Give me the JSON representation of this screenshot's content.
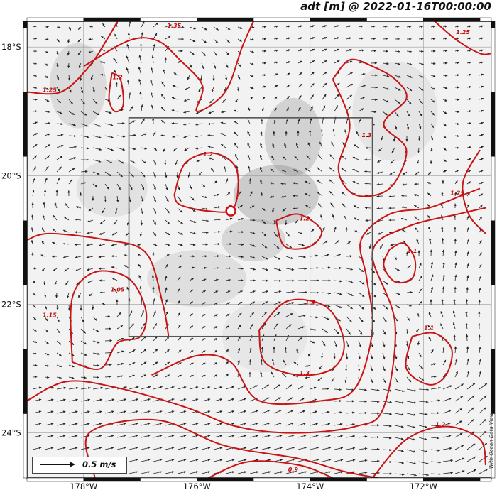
{
  "title": "adt [m] @ 2022-01-16T00:00:00",
  "legend": {
    "speed_label": "0.5 m/s"
  },
  "credit": "With Ocean Data View",
  "map": {
    "lon_range": [
      -179,
      -170.8
    ],
    "lat_range": [
      -24.7,
      -17.6
    ],
    "lon_ticks": [
      {
        "value": -178,
        "label": "178°W"
      },
      {
        "value": -176,
        "label": "176°W"
      },
      {
        "value": -174,
        "label": "174°W"
      },
      {
        "value": -172,
        "label": "172°W"
      }
    ],
    "lat_ticks": [
      {
        "value": -18,
        "label": "18°S"
      },
      {
        "value": -20,
        "label": "20°S"
      },
      {
        "value": -22,
        "label": "22°S"
      },
      {
        "value": -24,
        "label": "24°S"
      }
    ],
    "region_box": {
      "lon": [
        -177.2,
        -172.9
      ],
      "lat": [
        -19.1,
        -22.5
      ]
    },
    "station": {
      "lon": -175.4,
      "lat": -20.55
    },
    "colors": {
      "contour": "#c81414",
      "land_shade": "#b8b8b8",
      "arrow": "#222222",
      "frame": "#111111"
    }
  },
  "contours": [
    {
      "label": "1.2",
      "lon": -175.8,
      "lat": -19.7,
      "points": [
        [
          -176.4,
          -20.3
        ],
        [
          -176.2,
          -19.8
        ],
        [
          -175.7,
          -19.65
        ],
        [
          -175.3,
          -19.9
        ],
        [
          -175.35,
          -20.5
        ],
        [
          -175.8,
          -20.55
        ],
        [
          -176.3,
          -20.45
        ]
      ]
    },
    {
      "label": "1.2",
      "lon": -177.4,
      "lat": -18.5,
      "points": [
        [
          -177.5,
          -18.4
        ],
        [
          -177.35,
          -18.5
        ],
        [
          -177.3,
          -18.9
        ],
        [
          -177.45,
          -19.0
        ],
        [
          -177.55,
          -18.8
        ]
      ]
    },
    {
      "label": "1.2",
      "lon": -174.1,
      "lat": -20.7,
      "points": [
        [
          -174.6,
          -20.7
        ],
        [
          -174.2,
          -20.6
        ],
        [
          -173.8,
          -20.85
        ],
        [
          -174.0,
          -21.1
        ],
        [
          -174.45,
          -21.1
        ]
      ]
    },
    {
      "label": "1.3",
      "lon": -174.0,
      "lat": -22.0,
      "points": [
        [
          -174.9,
          -22.4
        ],
        [
          -174.4,
          -21.95
        ],
        [
          -173.7,
          -22.05
        ],
        [
          -173.4,
          -22.6
        ],
        [
          -173.6,
          -23.0
        ],
        [
          -174.2,
          -23.1
        ],
        [
          -174.8,
          -22.9
        ]
      ]
    },
    {
      "label": "1.3",
      "lon": -173.0,
      "lat": -19.4,
      "points": [
        [
          -173.6,
          -18.5
        ],
        [
          -173.3,
          -18.2
        ],
        [
          -172.9,
          -18.3
        ],
        [
          -172.5,
          -18.5
        ],
        [
          -172.3,
          -18.8
        ],
        [
          -172.7,
          -19.2
        ],
        [
          -172.3,
          -19.6
        ],
        [
          -172.6,
          -20.2
        ],
        [
          -173.2,
          -20.3
        ],
        [
          -173.5,
          -19.9
        ],
        [
          -173.3,
          -19.2
        ]
      ]
    },
    {
      "label": "1.1",
      "lon": -172.2,
      "lat": -21.2,
      "points": [
        [
          -172.6,
          -21.15
        ],
        [
          -172.35,
          -21.05
        ],
        [
          -172.15,
          -21.3
        ],
        [
          -172.2,
          -21.6
        ],
        [
          -172.5,
          -21.65
        ],
        [
          -172.7,
          -21.4
        ]
      ]
    },
    {
      "label": "1.1",
      "lon": -171.9,
      "lat": -22.4,
      "points": [
        [
          -172.2,
          -22.5
        ],
        [
          -171.8,
          -22.45
        ],
        [
          -171.5,
          -22.7
        ],
        [
          -171.6,
          -23.1
        ],
        [
          -171.9,
          -23.25
        ],
        [
          -172.3,
          -23.0
        ]
      ]
    },
    {
      "label": "1.05",
      "lon": -177.4,
      "lat": -21.8,
      "points": [
        [
          -178.2,
          -22.9
        ],
        [
          -178.2,
          -21.9
        ],
        [
          -177.8,
          -21.5
        ],
        [
          -177.2,
          -21.6
        ],
        [
          -176.9,
          -22.1
        ],
        [
          -177.0,
          -22.5
        ],
        [
          -177.4,
          -22.6
        ],
        [
          -177.7,
          -23.0
        ]
      ]
    },
    {
      "label": "1.15",
      "lon": -178.6,
      "lat": -22.2,
      "points": [
        [
          -179,
          -21.0
        ],
        [
          -178.6,
          -20.9
        ],
        [
          -177.6,
          -21.0
        ],
        [
          -176.9,
          -21.2
        ],
        [
          -176.6,
          -22.0
        ],
        [
          -176.5,
          -22.5
        ]
      ]
    },
    {
      "label": "1.3",
      "lon": -174.1,
      "lat": -23.1,
      "points": [
        [
          -176.8,
          -23.1
        ],
        [
          -176.0,
          -22.8
        ],
        [
          -175.4,
          -22.9
        ],
        [
          -174.9,
          -23.5
        ],
        [
          -173.8,
          -23.5
        ],
        [
          -173.2,
          -23.3
        ],
        [
          -172.9,
          -22.4
        ],
        [
          -173.0,
          -21.6
        ],
        [
          -173.1,
          -21.0
        ],
        [
          -172.6,
          -20.6
        ],
        [
          -171.9,
          -20.5
        ],
        [
          -171.3,
          -20.3
        ],
        [
          -171.0,
          -20.2
        ]
      ]
    },
    {
      "label": "",
      "lon": -175,
      "lat": -24,
      "points": [
        [
          -179,
          -23.5
        ],
        [
          -178.3,
          -23.2
        ],
        [
          -177.4,
          -23.3
        ],
        [
          -176.2,
          -23.6
        ],
        [
          -175.3,
          -23.9
        ],
        [
          -174.3,
          -24.0
        ],
        [
          -173.2,
          -23.9
        ],
        [
          -172.7,
          -23.6
        ],
        [
          -172.5,
          -22.3
        ],
        [
          -172.9,
          -21.2
        ],
        [
          -172.3,
          -20.8
        ],
        [
          -171.4,
          -20.6
        ],
        [
          -170.9,
          -20.5
        ]
      ]
    },
    {
      "label": "",
      "lon": -175,
      "lat": -24,
      "points": [
        [
          -177.8,
          -24.7
        ],
        [
          -177.9,
          -24.0
        ],
        [
          -176.7,
          -23.8
        ],
        [
          -175.5,
          -24.2
        ],
        [
          -174.2,
          -24.4
        ],
        [
          -173.4,
          -24.6
        ],
        [
          -172.8,
          -24.7
        ]
      ]
    },
    {
      "label": "1.2",
      "lon": -171.7,
      "lat": -23.9,
      "points": [
        [
          -172.9,
          -24.7
        ],
        [
          -172.3,
          -24.1
        ],
        [
          -171.6,
          -23.9
        ],
        [
          -171.0,
          -24.1
        ],
        [
          -170.9,
          -24.5
        ]
      ]
    },
    {
      "label": "0.9",
      "lon": -174.3,
      "lat": -24.6,
      "points": [
        [
          -175.8,
          -24.7
        ],
        [
          -175.1,
          -24.45
        ],
        [
          -174.2,
          -24.5
        ],
        [
          -173.6,
          -24.7
        ]
      ]
    },
    {
      "label": "1.35",
      "lon": -176.4,
      "lat": -17.7,
      "points": [
        [
          -178.0,
          -18.3
        ],
        [
          -177.2,
          -17.9
        ],
        [
          -176.7,
          -17.9
        ],
        [
          -176.3,
          -18.2
        ],
        [
          -175.9,
          -18.6
        ],
        [
          -176.0,
          -19.0
        ],
        [
          -175.5,
          -18.7
        ],
        [
          -175.2,
          -18.0
        ],
        [
          -175.0,
          -17.6
        ]
      ]
    },
    {
      "label": "1.25",
      "lon": -178.6,
      "lat": -18.7,
      "points": [
        [
          -179,
          -18.7
        ],
        [
          -178.4,
          -18.7
        ],
        [
          -177.9,
          -18.3
        ],
        [
          -177.6,
          -17.9
        ],
        [
          -177.4,
          -17.6
        ]
      ]
    },
    {
      "label": "1.25",
      "lon": -171.3,
      "lat": -17.8,
      "points": [
        [
          -171.8,
          -17.6
        ],
        [
          -171.4,
          -17.9
        ],
        [
          -171.0,
          -18.1
        ],
        [
          -170.8,
          -18.1
        ]
      ]
    },
    {
      "label": "1.25",
      "lon": -171.4,
      "lat": -20.3,
      "points": [
        [
          -171.0,
          -19.6
        ],
        [
          -171.3,
          -20.1
        ],
        [
          -171.2,
          -20.6
        ],
        [
          -170.9,
          -20.9
        ]
      ]
    }
  ]
}
